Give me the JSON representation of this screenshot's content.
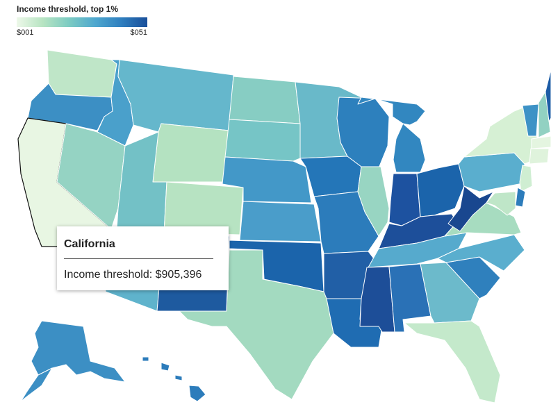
{
  "legend": {
    "title": "Income threshold, top 1%",
    "min_label": "$001",
    "max_label": "$051",
    "colors": [
      "#edf8e9",
      "#b7e4c2",
      "#7ccbc2",
      "#4fa8cf",
      "#2f7fbf",
      "#1a4f9a"
    ]
  },
  "tooltip": {
    "state": "California",
    "metric_label": "Income threshold",
    "value": "$905,396",
    "line": "Income threshold: $905,396"
  },
  "states": [
    {
      "id": "WA",
      "name": "Washington",
      "color": "#bfe6c8"
    },
    {
      "id": "OR",
      "name": "Oregon",
      "color": "#3c8fc4"
    },
    {
      "id": "CA",
      "name": "California",
      "color": "#e8f6e3",
      "selected": true
    },
    {
      "id": "ID",
      "name": "Idaho",
      "color": "#4aa0cb"
    },
    {
      "id": "NV",
      "name": "Nevada",
      "color": "#95d3c3"
    },
    {
      "id": "MT",
      "name": "Montana",
      "color": "#65b7cc"
    },
    {
      "id": "WY",
      "name": "Wyoming",
      "color": "#b4e2c1"
    },
    {
      "id": "UT",
      "name": "Utah",
      "color": "#73c1c6"
    },
    {
      "id": "AZ",
      "name": "Arizona",
      "color": "#5fb3cc"
    },
    {
      "id": "CO",
      "name": "Colorado",
      "color": "#b7e3c2"
    },
    {
      "id": "NM",
      "name": "New Mexico",
      "color": "#1e5a9f"
    },
    {
      "id": "ND",
      "name": "North Dakota",
      "color": "#87cdc3"
    },
    {
      "id": "SD",
      "name": "South Dakota",
      "color": "#76c5c6"
    },
    {
      "id": "NE",
      "name": "Nebraska",
      "color": "#4398c8"
    },
    {
      "id": "KS",
      "name": "Kansas",
      "color": "#4a9dca"
    },
    {
      "id": "OK",
      "name": "Oklahoma",
      "color": "#1b64ab"
    },
    {
      "id": "TX",
      "name": "Texas",
      "color": "#a3dac0"
    },
    {
      "id": "MN",
      "name": "Minnesota",
      "color": "#69b9c9"
    },
    {
      "id": "IA",
      "name": "Iowa",
      "color": "#2476b8"
    },
    {
      "id": "MO",
      "name": "Missouri",
      "color": "#2c7cbb"
    },
    {
      "id": "AR",
      "name": "Arkansas",
      "color": "#215fa6"
    },
    {
      "id": "LA",
      "name": "Louisiana",
      "color": "#1f6cb2"
    },
    {
      "id": "WI",
      "name": "Wisconsin",
      "color": "#2d80bd"
    },
    {
      "id": "IL",
      "name": "Illinois",
      "color": "#98d5c2"
    },
    {
      "id": "MI",
      "name": "Michigan",
      "color": "#3287c0"
    },
    {
      "id": "IN",
      "name": "Indiana",
      "color": "#1d52a0"
    },
    {
      "id": "OH",
      "name": "Ohio",
      "color": "#1b64ab"
    },
    {
      "id": "KY",
      "name": "Kentucky",
      "color": "#1d4f9a"
    },
    {
      "id": "TN",
      "name": "Tennessee",
      "color": "#56aacd"
    },
    {
      "id": "MS",
      "name": "Mississippi",
      "color": "#1d4e98"
    },
    {
      "id": "AL",
      "name": "Alabama",
      "color": "#2a71b6"
    },
    {
      "id": "GA",
      "name": "Georgia",
      "color": "#6cbacb"
    },
    {
      "id": "FL",
      "name": "Florida",
      "color": "#c4e9cb"
    },
    {
      "id": "SC",
      "name": "South Carolina",
      "color": "#2f80bd"
    },
    {
      "id": "NC",
      "name": "North Carolina",
      "color": "#5aaece"
    },
    {
      "id": "VA",
      "name": "Virginia",
      "color": "#a7dcc0"
    },
    {
      "id": "WV",
      "name": "West Virginia",
      "color": "#19478f"
    },
    {
      "id": "PA",
      "name": "Pennsylvania",
      "color": "#5aaece"
    },
    {
      "id": "NY",
      "name": "New York",
      "color": "#d6f0d4"
    },
    {
      "id": "VT",
      "name": "Vermont",
      "color": "#3d92c6"
    },
    {
      "id": "NH",
      "name": "New Hampshire",
      "color": "#92d1c2"
    },
    {
      "id": "ME",
      "name": "Maine",
      "color": "#1c5ca6"
    },
    {
      "id": "MA",
      "name": "Massachusetts",
      "color": "#e4f5e0"
    },
    {
      "id": "CT",
      "name": "Connecticut",
      "color": "#dff3dc"
    },
    {
      "id": "NJ",
      "name": "New Jersey",
      "color": "#cfeed2"
    },
    {
      "id": "DE",
      "name": "Delaware",
      "color": "#2c7cbb"
    },
    {
      "id": "MD",
      "name": "Maryland",
      "color": "#bfe6c8"
    },
    {
      "id": "AK",
      "name": "Alaska",
      "color": "#3c8fc4"
    },
    {
      "id": "HI",
      "name": "Hawaii",
      "color": "#2c7cbb"
    }
  ]
}
